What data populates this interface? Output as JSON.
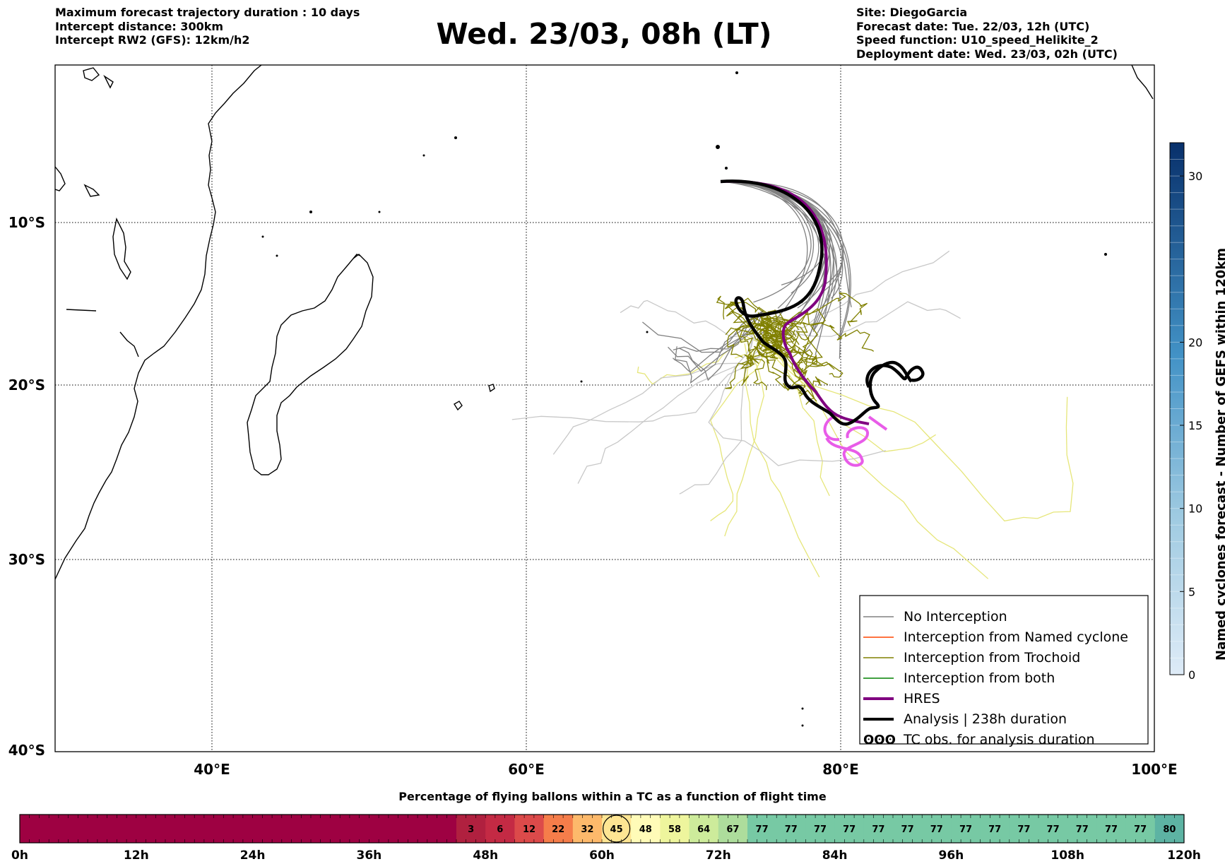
{
  "header": {
    "left_lines": [
      "Maximum forecast trajectory duration : 10 days",
      "Intercept distance: 300km",
      "Intercept RW2 (GFS):  12km/h2"
    ],
    "title": "Wed. 23/03, 08h (LT)",
    "right_lines": [
      "Site: DiegoGarcia",
      "Forecast date: Tue. 22/03, 12h (UTC)",
      "Speed function: U10_speed_Helikite_2",
      "Deployment date: Wed. 23/03, 02h (UTC)"
    ]
  },
  "map": {
    "lon_ticks": [
      "40°E",
      "60°E",
      "80°E",
      "100°E"
    ],
    "lat_ticks": [
      "10°S",
      "20°S",
      "30°S",
      "40°S"
    ],
    "colors": {
      "no_interception": "#808080",
      "named_cyclone": "#ff4500",
      "trochoid": "#808000",
      "both": "#008000",
      "hres": "#800080",
      "analysis": "#000000",
      "light_grey": "#c8c8c8",
      "light_yellow": "#e6e67a",
      "magenta": "#e85ce8"
    }
  },
  "legend": {
    "items": [
      {
        "label": "No Interception",
        "color": "#808080",
        "style": "thin"
      },
      {
        "label": "Interception from Named cyclone",
        "color": "#ff4500",
        "style": "thin"
      },
      {
        "label": "Interception from Trochoid",
        "color": "#808000",
        "style": "thin"
      },
      {
        "label": "Interception from both",
        "color": "#008000",
        "style": "thin"
      },
      {
        "label": "HRES",
        "color": "#800080",
        "style": "thick"
      },
      {
        "label": "Analysis | 238h duration",
        "color": "#000000",
        "style": "thick"
      },
      {
        "label": "TC obs. for analysis duration",
        "color": "#000000",
        "style": "symbol",
        "symbol": "ʘʘʘ"
      }
    ]
  },
  "side_colorbar": {
    "title": "Named cyclones forecast - Number of GEFS within 120km",
    "ticks": [
      "0",
      "5",
      "10",
      "15",
      "20",
      "30"
    ],
    "range": [
      0,
      32
    ]
  },
  "bottom_colorbar": {
    "title": "Percentage of flying ballons within a TC as a function of flight time",
    "time_labels": [
      "0h",
      "12h",
      "24h",
      "36h",
      "48h",
      "60h",
      "72h",
      "84h",
      "96h",
      "108h",
      "120h"
    ],
    "segments": [
      {
        "value": "3",
        "color": "#b0203f"
      },
      {
        "value": "6",
        "color": "#c42a44"
      },
      {
        "value": "12",
        "color": "#dc4a4a"
      },
      {
        "value": "22",
        "color": "#f57d4a"
      },
      {
        "value": "32",
        "color": "#fdb96b"
      },
      {
        "value": "45",
        "color": "#fee593",
        "highlight": true
      },
      {
        "value": "48",
        "color": "#fffbb8"
      },
      {
        "value": "58",
        "color": "#eef59d"
      },
      {
        "value": "64",
        "color": "#cdeb9b"
      },
      {
        "value": "67",
        "color": "#addd9c"
      },
      {
        "value": "77",
        "color": "#77c9a4"
      },
      {
        "value": "77",
        "color": "#77c9a4"
      },
      {
        "value": "77",
        "color": "#77c9a4"
      },
      {
        "value": "77",
        "color": "#77c9a4"
      },
      {
        "value": "77",
        "color": "#77c9a4"
      },
      {
        "value": "77",
        "color": "#77c9a4"
      },
      {
        "value": "77",
        "color": "#77c9a4"
      },
      {
        "value": "77",
        "color": "#77c9a4"
      },
      {
        "value": "77",
        "color": "#77c9a4"
      },
      {
        "value": "77",
        "color": "#77c9a4"
      },
      {
        "value": "77",
        "color": "#77c9a4"
      },
      {
        "value": "77",
        "color": "#77c9a4"
      },
      {
        "value": "77",
        "color": "#77c9a4"
      },
      {
        "value": "77",
        "color": "#77c9a4"
      },
      {
        "value": "80",
        "color": "#5db3a3"
      }
    ],
    "lead_color": "#9e0142"
  }
}
